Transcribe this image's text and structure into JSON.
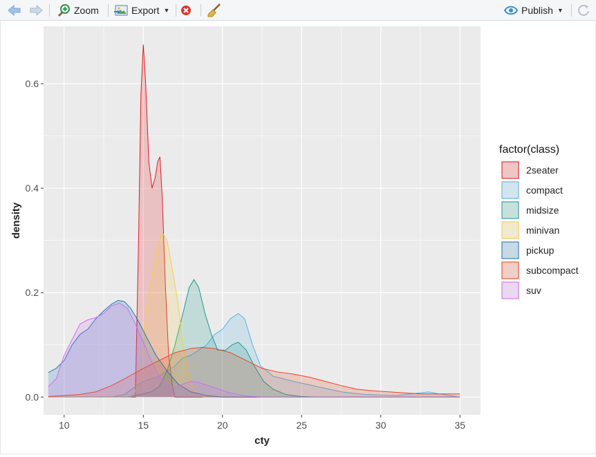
{
  "toolbar": {
    "zoom_label": "Zoom",
    "export_label": "Export",
    "publish_label": "Publish"
  },
  "icons": {
    "back": "arrow-left-icon",
    "forward": "arrow-right-icon",
    "zoom": "magnifier-plus-icon",
    "export": "export-image-icon",
    "remove": "remove-plot-icon",
    "clear": "broom-icon",
    "publish": "publish-eye-icon",
    "refresh": "refresh-icon"
  },
  "colors": {
    "panel_bg": "#EBEBEB",
    "grid": "#FFFFFF",
    "accent_blue": "#3a8ed6"
  },
  "chart_data": {
    "type": "area",
    "subtype": "density",
    "xlabel": "cty",
    "ylabel": "density",
    "xlim": [
      8.7,
      36.3
    ],
    "ylim": [
      -0.034,
      0.71
    ],
    "x_ticks": [
      10,
      15,
      20,
      25,
      30,
      35
    ],
    "y_ticks": [
      0.0,
      0.2,
      0.4,
      0.6
    ],
    "x_tick_labels": [
      "10",
      "15",
      "20",
      "25",
      "30",
      "35"
    ],
    "y_tick_labels": [
      "0.0",
      "0.2",
      "0.4",
      "0.6"
    ],
    "grid": true,
    "legend_title": "factor(class)",
    "legend_position": "right",
    "fill_alpha": 0.2,
    "series": [
      {
        "name": "2seater",
        "color": "#E41A1C",
        "points": [
          [
            9,
            0.0
          ],
          [
            14.5,
            0.0
          ],
          [
            14.7,
            0.3
          ],
          [
            14.85,
            0.58
          ],
          [
            15,
            0.675
          ],
          [
            15.15,
            0.6
          ],
          [
            15.35,
            0.45
          ],
          [
            15.55,
            0.4
          ],
          [
            15.75,
            0.42
          ],
          [
            15.9,
            0.45
          ],
          [
            16.05,
            0.46
          ],
          [
            16.2,
            0.38
          ],
          [
            16.4,
            0.21
          ],
          [
            16.6,
            0.08
          ],
          [
            16.85,
            0.02
          ],
          [
            17,
            0.0
          ],
          [
            35,
            0.0
          ]
        ]
      },
      {
        "name": "compact",
        "color": "#54B4E0",
        "points": [
          [
            9,
            0.0
          ],
          [
            13,
            0.0
          ],
          [
            13.8,
            0.005
          ],
          [
            14.5,
            0.02
          ],
          [
            15,
            0.03
          ],
          [
            16,
            0.04
          ],
          [
            17,
            0.06
          ],
          [
            17.5,
            0.075
          ],
          [
            18,
            0.08
          ],
          [
            18.5,
            0.09
          ],
          [
            19,
            0.1
          ],
          [
            19.5,
            0.12
          ],
          [
            20,
            0.13
          ],
          [
            20.5,
            0.15
          ],
          [
            21,
            0.16
          ],
          [
            21.4,
            0.15
          ],
          [
            21.9,
            0.1
          ],
          [
            22.4,
            0.06
          ],
          [
            23.2,
            0.04
          ],
          [
            24.5,
            0.03
          ],
          [
            26,
            0.02
          ],
          [
            27.5,
            0.01
          ],
          [
            29,
            0.005
          ],
          [
            31,
            0.003
          ],
          [
            32.5,
            0.008
          ],
          [
            33,
            0.01
          ],
          [
            33.5,
            0.007
          ],
          [
            35,
            0.0
          ]
        ]
      },
      {
        "name": "midsize",
        "color": "#1E9B8A",
        "points": [
          [
            9,
            0.0
          ],
          [
            14,
            0.0
          ],
          [
            14.8,
            0.005
          ],
          [
            15.5,
            0.01
          ],
          [
            16,
            0.02
          ],
          [
            16.5,
            0.05
          ],
          [
            17,
            0.1
          ],
          [
            17.5,
            0.16
          ],
          [
            17.9,
            0.21
          ],
          [
            18.2,
            0.225
          ],
          [
            18.5,
            0.21
          ],
          [
            18.9,
            0.16
          ],
          [
            19.3,
            0.12
          ],
          [
            19.7,
            0.09
          ],
          [
            20.2,
            0.09
          ],
          [
            20.6,
            0.1
          ],
          [
            21,
            0.105
          ],
          [
            21.5,
            0.09
          ],
          [
            22,
            0.06
          ],
          [
            22.6,
            0.03
          ],
          [
            23.2,
            0.015
          ],
          [
            24,
            0.005
          ],
          [
            25,
            0.001
          ],
          [
            26,
            0.0
          ],
          [
            35,
            0.0
          ]
        ]
      },
      {
        "name": "minivan",
        "color": "#F2CF4A",
        "points": [
          [
            9,
            0.0
          ],
          [
            14.2,
            0.0
          ],
          [
            14.5,
            0.01
          ],
          [
            14.9,
            0.07
          ],
          [
            15.2,
            0.17
          ],
          [
            15.6,
            0.24
          ],
          [
            15.9,
            0.29
          ],
          [
            16.2,
            0.315
          ],
          [
            16.5,
            0.3
          ],
          [
            16.8,
            0.25
          ],
          [
            17.2,
            0.18
          ],
          [
            17.5,
            0.1
          ],
          [
            17.8,
            0.05
          ],
          [
            18.1,
            0.02
          ],
          [
            18.4,
            0.005
          ],
          [
            18.8,
            0.0
          ],
          [
            35,
            0.0
          ]
        ]
      },
      {
        "name": "pickup",
        "color": "#1F78B4",
        "points": [
          [
            9,
            0.047
          ],
          [
            9.5,
            0.055
          ],
          [
            10,
            0.07
          ],
          [
            10.5,
            0.1
          ],
          [
            11,
            0.12
          ],
          [
            11.5,
            0.13
          ],
          [
            12,
            0.15
          ],
          [
            12.5,
            0.165
          ],
          [
            13,
            0.178
          ],
          [
            13.4,
            0.185
          ],
          [
            13.8,
            0.183
          ],
          [
            14.2,
            0.17
          ],
          [
            14.7,
            0.145
          ],
          [
            15.2,
            0.115
          ],
          [
            15.8,
            0.08
          ],
          [
            16.5,
            0.05
          ],
          [
            17.2,
            0.025
          ],
          [
            18,
            0.01
          ],
          [
            19,
            0.003
          ],
          [
            20,
            0.0
          ],
          [
            35,
            0.0
          ]
        ]
      },
      {
        "name": "subcompact",
        "color": "#E8441F",
        "points": [
          [
            9,
            0.001
          ],
          [
            10,
            0.003
          ],
          [
            11,
            0.005
          ],
          [
            12,
            0.01
          ],
          [
            13,
            0.022
          ],
          [
            14,
            0.038
          ],
          [
            15,
            0.055
          ],
          [
            16,
            0.07
          ],
          [
            17,
            0.085
          ],
          [
            18,
            0.093
          ],
          [
            18.7,
            0.095
          ],
          [
            19.5,
            0.093
          ],
          [
            20.5,
            0.085
          ],
          [
            21.5,
            0.07
          ],
          [
            22.5,
            0.055
          ],
          [
            23.5,
            0.048
          ],
          [
            24.5,
            0.044
          ],
          [
            25.5,
            0.038
          ],
          [
            26.5,
            0.03
          ],
          [
            27.5,
            0.022
          ],
          [
            28.5,
            0.015
          ],
          [
            29.5,
            0.012
          ],
          [
            30.5,
            0.01
          ],
          [
            31.5,
            0.008
          ],
          [
            32.5,
            0.006
          ],
          [
            33.5,
            0.006
          ],
          [
            34.5,
            0.006
          ],
          [
            35,
            0.006
          ]
        ]
      },
      {
        "name": "suv",
        "color": "#CF6EEF",
        "points": [
          [
            9,
            0.02
          ],
          [
            9.5,
            0.035
          ],
          [
            10,
            0.08
          ],
          [
            10.5,
            0.11
          ],
          [
            11,
            0.14
          ],
          [
            11.5,
            0.148
          ],
          [
            12,
            0.152
          ],
          [
            12.5,
            0.16
          ],
          [
            13,
            0.175
          ],
          [
            13.5,
            0.18
          ],
          [
            14,
            0.17
          ],
          [
            14.5,
            0.14
          ],
          [
            15,
            0.105
          ],
          [
            15.5,
            0.07
          ],
          [
            16,
            0.04
          ],
          [
            16.5,
            0.022
          ],
          [
            17,
            0.018
          ],
          [
            17.5,
            0.025
          ],
          [
            18,
            0.03
          ],
          [
            18.5,
            0.028
          ],
          [
            19.5,
            0.018
          ],
          [
            20.5,
            0.008
          ],
          [
            21.5,
            0.002
          ],
          [
            22.5,
            0.0
          ],
          [
            35,
            0.0
          ]
        ]
      }
    ]
  }
}
